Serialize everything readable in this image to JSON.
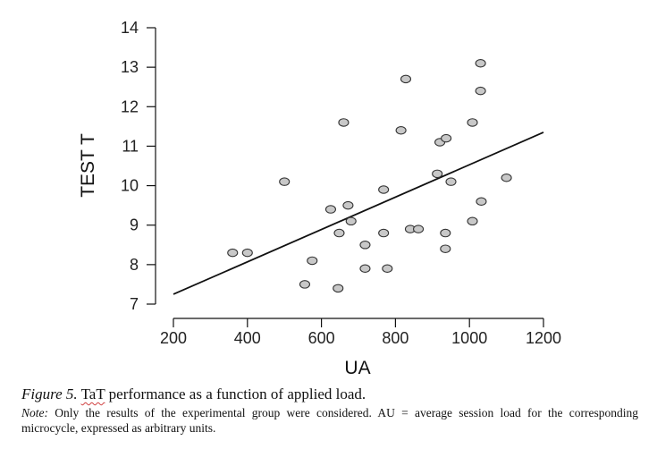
{
  "chart_data": {
    "type": "scatter",
    "xlabel": "UA",
    "ylabel": "TEST T",
    "xlim": [
      200,
      1200
    ],
    "ylim": [
      7,
      14
    ],
    "xticks": [
      "200",
      "400",
      "600",
      "800",
      "1000",
      "1200"
    ],
    "yticks": [
      "7",
      "8",
      "9",
      "10",
      "11",
      "12",
      "13",
      "14"
    ],
    "points": [
      {
        "x": 360,
        "y": 8.3
      },
      {
        "x": 400,
        "y": 8.3
      },
      {
        "x": 500,
        "y": 10.1
      },
      {
        "x": 555,
        "y": 7.5
      },
      {
        "x": 575,
        "y": 8.1
      },
      {
        "x": 625,
        "y": 9.4
      },
      {
        "x": 645,
        "y": 7.4
      },
      {
        "x": 648,
        "y": 8.8
      },
      {
        "x": 660,
        "y": 11.6
      },
      {
        "x": 672,
        "y": 9.5
      },
      {
        "x": 680,
        "y": 9.1
      },
      {
        "x": 718,
        "y": 8.5
      },
      {
        "x": 718,
        "y": 7.9
      },
      {
        "x": 768,
        "y": 9.9
      },
      {
        "x": 768,
        "y": 8.8
      },
      {
        "x": 778,
        "y": 7.9
      },
      {
        "x": 815,
        "y": 11.4
      },
      {
        "x": 828,
        "y": 12.7
      },
      {
        "x": 840,
        "y": 8.9
      },
      {
        "x": 862,
        "y": 8.9
      },
      {
        "x": 913,
        "y": 10.3
      },
      {
        "x": 920,
        "y": 11.1
      },
      {
        "x": 937,
        "y": 11.2
      },
      {
        "x": 935,
        "y": 8.8
      },
      {
        "x": 935,
        "y": 8.4
      },
      {
        "x": 950,
        "y": 10.1
      },
      {
        "x": 1008,
        "y": 11.6
      },
      {
        "x": 1008,
        "y": 9.1
      },
      {
        "x": 1030,
        "y": 13.1
      },
      {
        "x": 1030,
        "y": 12.4
      },
      {
        "x": 1032,
        "y": 9.6
      },
      {
        "x": 1100,
        "y": 10.2
      }
    ],
    "fit_line": {
      "x": [
        200,
        1200
      ],
      "y": [
        7.25,
        11.35
      ]
    },
    "marker_fill": "#c8c8c8",
    "marker_stroke": "#333333",
    "line_color": "#111111",
    "grid": false,
    "legend": "none"
  },
  "caption": {
    "figure_label": "Figure 5.",
    "figure_text_tat": "TaT",
    "figure_text_rest": " performance as a function of applied load.",
    "note_label": "Note:",
    "note_text": " Only the results of the experimental group were considered. AU = average session load for the corresponding microcycle, expressed as arbitrary units."
  }
}
